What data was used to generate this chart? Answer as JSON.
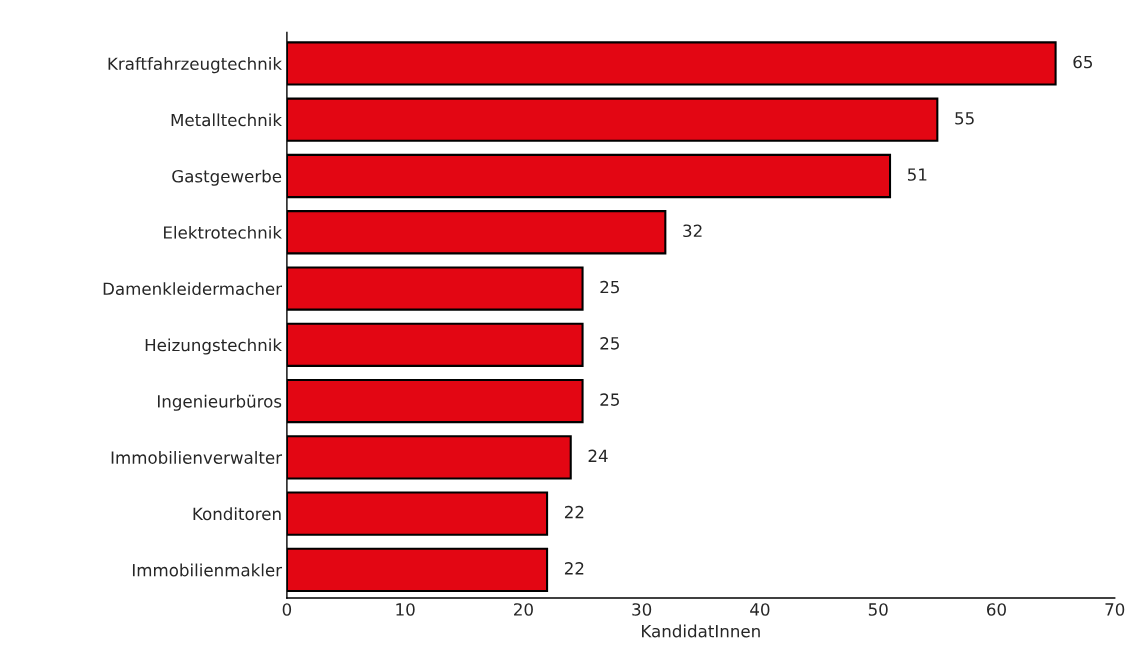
{
  "chart_data": {
    "type": "bar",
    "orientation": "horizontal",
    "xlabel": "KandidatInnen",
    "categories": [
      "Kraftfahrzeugtechnik",
      "Metalltechnik",
      "Gastgewerbe",
      "Elektrotechnik",
      "Damenkleidermacher",
      "Heizungstechnik",
      "Ingenieurbüros",
      "Immobilienverwalter",
      "Konditoren",
      "Immobilienmakler"
    ],
    "values": [
      65,
      55,
      51,
      32,
      25,
      25,
      25,
      24,
      22,
      22
    ],
    "color": "#e30613",
    "data_labels": true,
    "grid": false,
    "legend": false,
    "xlim": [
      0,
      70
    ],
    "xticks": [
      0,
      10,
      20,
      30,
      40,
      50,
      60,
      70
    ]
  }
}
